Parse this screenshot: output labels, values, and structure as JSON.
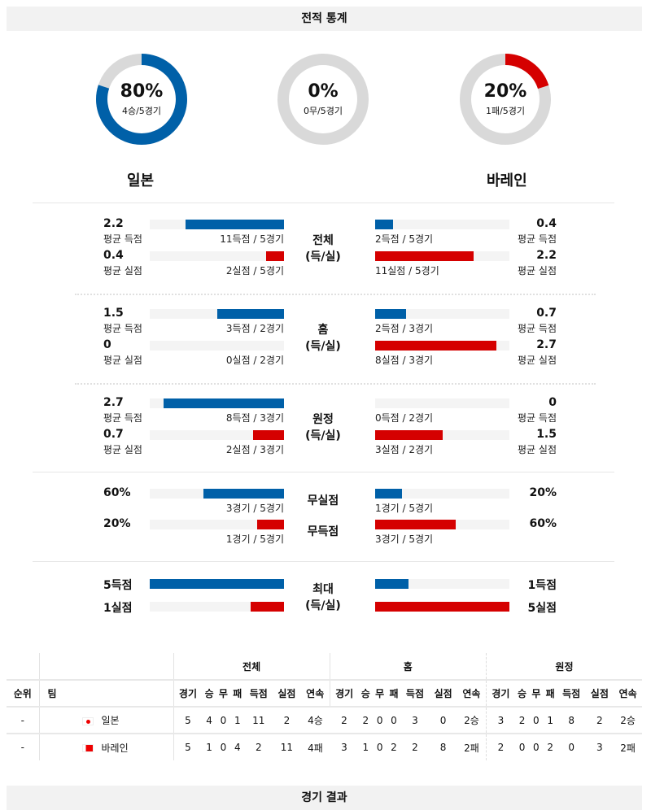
{
  "header": {
    "title": "전적 통계"
  },
  "colors": {
    "blue": "#0060a8",
    "red": "#d50000",
    "gray": "#d9d9d9"
  },
  "donuts": [
    {
      "pct": "80%",
      "sub": "4승/5경기",
      "fraction": 0.8,
      "color": "#0060a8"
    },
    {
      "pct": "0%",
      "sub": "0무/5경기",
      "fraction": 0,
      "color": "#d9d9d9"
    },
    {
      "pct": "20%",
      "sub": "1패/5경기",
      "fraction": 0.2,
      "color": "#d50000"
    }
  ],
  "teams": {
    "home": "일본",
    "away": "바레인"
  },
  "sections": [
    {
      "cat": [
        "전체",
        "(득/실)"
      ],
      "rows": [
        {
          "lv": "2.2",
          "ll": "평균 득점",
          "lf": 0.733,
          "lc": "11득점 / 5경기",
          "rv": "0.4",
          "rl": "평균 득점",
          "rf": 0.133,
          "rc": "2득점 / 5경기",
          "color": "blue"
        },
        {
          "lv": "0.4",
          "ll": "평균 실점",
          "lf": 0.133,
          "lc": "2실점 / 5경기",
          "rv": "2.2",
          "rl": "평균 실점",
          "rf": 0.733,
          "rc": "11실점 / 5경기",
          "color": "red"
        }
      ]
    },
    {
      "cat": [
        "홈",
        "(득/실)"
      ],
      "rows": [
        {
          "lv": "1.5",
          "ll": "평균 득점",
          "lf": 0.5,
          "lc": "3득점 / 2경기",
          "rv": "0.7",
          "rl": "평균 득점",
          "rf": 0.233,
          "rc": "2득점 / 3경기",
          "color": "blue"
        },
        {
          "lv": "0",
          "ll": "평균 실점",
          "lf": 0,
          "lc": "0실점 / 2경기",
          "rv": "2.7",
          "rl": "평균 실점",
          "rf": 0.9,
          "rc": "8실점 / 3경기",
          "color": "red"
        }
      ]
    },
    {
      "cat": [
        "원정",
        "(득/실)"
      ],
      "rows": [
        {
          "lv": "2.7",
          "ll": "평균 득점",
          "lf": 0.9,
          "lc": "8득점 / 3경기",
          "rv": "0",
          "rl": "평균 득점",
          "rf": 0,
          "rc": "0득점 / 2경기",
          "color": "blue"
        },
        {
          "lv": "0.7",
          "ll": "평균 실점",
          "lf": 0.233,
          "lc": "2실점 / 3경기",
          "rv": "1.5",
          "rl": "평균 실점",
          "rf": 0.5,
          "rc": "3실점 / 2경기",
          "color": "red"
        }
      ]
    }
  ],
  "clean": [
    {
      "cat": "무실점",
      "lv": "60%",
      "lf": 0.6,
      "lc": "3경기 / 5경기",
      "rv": "20%",
      "rf": 0.2,
      "rc": "1경기 / 5경기",
      "color": "blue"
    },
    {
      "cat": "무득점",
      "lv": "20%",
      "lf": 0.2,
      "lc": "1경기 / 5경기",
      "rv": "60%",
      "rf": 0.6,
      "rc": "3경기 / 5경기",
      "color": "red"
    }
  ],
  "max": {
    "cat": [
      "최대",
      "(득/실)"
    ],
    "rows": [
      {
        "lv": "5득점",
        "lf": 1,
        "rv": "1득점",
        "rf": 0.25,
        "color": "blue"
      },
      {
        "lv": "1실점",
        "lf": 0.25,
        "rv": "5실점",
        "rf": 1,
        "color": "red"
      }
    ]
  },
  "table": {
    "groups": [
      "전체",
      "홈",
      "원정"
    ],
    "rank": "순위",
    "team": "팀",
    "cols": [
      "경기",
      "승",
      "무",
      "패",
      "득점",
      "실점",
      "연속"
    ],
    "rows": [
      {
        "rank": "-",
        "team": "일본",
        "flag": "japan",
        "vals": [
          "5",
          "4",
          "0",
          "1",
          "11",
          "2",
          "4승",
          "2",
          "2",
          "0",
          "0",
          "3",
          "0",
          "2승",
          "3",
          "2",
          "0",
          "1",
          "8",
          "2",
          "2승"
        ]
      },
      {
        "rank": "-",
        "team": "바레인",
        "flag": "bahrain",
        "vals": [
          "5",
          "1",
          "0",
          "4",
          "2",
          "11",
          "4패",
          "3",
          "1",
          "0",
          "2",
          "2",
          "8",
          "2패",
          "2",
          "0",
          "0",
          "2",
          "0",
          "3",
          "2패"
        ]
      }
    ]
  },
  "footer": {
    "title": "경기 결과"
  }
}
